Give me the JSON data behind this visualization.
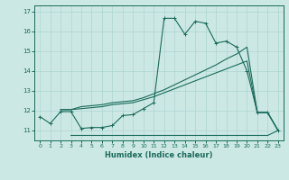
{
  "xlabel": "Humidex (Indice chaleur)",
  "bg_color": "#cce8e5",
  "line_color": "#1a6b5a",
  "grid_color": "#aed4d0",
  "xlim": [
    -0.5,
    23.5
  ],
  "ylim": [
    10.5,
    17.3
  ],
  "yticks": [
    11,
    12,
    13,
    14,
    15,
    16,
    17
  ],
  "xticks": [
    0,
    1,
    2,
    3,
    4,
    5,
    6,
    7,
    8,
    9,
    10,
    11,
    12,
    13,
    14,
    15,
    16,
    17,
    18,
    19,
    20,
    21,
    22,
    23
  ],
  "line1_x": [
    0,
    1,
    2,
    3,
    4,
    5,
    6,
    7,
    8,
    9,
    10,
    11,
    12,
    13,
    14,
    15,
    16,
    17,
    18,
    19,
    20,
    21,
    22,
    23
  ],
  "line1_y": [
    11.7,
    11.35,
    11.95,
    11.95,
    11.1,
    11.15,
    11.15,
    11.25,
    11.75,
    11.8,
    12.1,
    12.4,
    16.65,
    16.65,
    15.85,
    16.5,
    16.4,
    15.4,
    15.5,
    15.2,
    14.0,
    11.9,
    11.9,
    11.0
  ],
  "line2_x": [
    2,
    3,
    4,
    5,
    6,
    7,
    8,
    9,
    10,
    11,
    12,
    13,
    14,
    15,
    16,
    17,
    18,
    19,
    20,
    21,
    22,
    23
  ],
  "line2_y": [
    12.05,
    12.05,
    12.2,
    12.25,
    12.3,
    12.4,
    12.45,
    12.5,
    12.65,
    12.85,
    13.05,
    13.3,
    13.55,
    13.8,
    14.05,
    14.3,
    14.6,
    14.85,
    15.2,
    11.9,
    11.9,
    11.0
  ],
  "line3_x": [
    2,
    3,
    4,
    5,
    6,
    7,
    8,
    9,
    10,
    11,
    12,
    13,
    14,
    15,
    16,
    17,
    18,
    19,
    20,
    21,
    22,
    23
  ],
  "line3_y": [
    12.05,
    12.05,
    12.1,
    12.15,
    12.2,
    12.3,
    12.35,
    12.4,
    12.55,
    12.7,
    12.9,
    13.1,
    13.3,
    13.5,
    13.7,
    13.9,
    14.1,
    14.3,
    14.5,
    11.9,
    11.9,
    11.0
  ],
  "line4_x": [
    3,
    4,
    5,
    6,
    7,
    8,
    9,
    10,
    11,
    12,
    13,
    14,
    15,
    16,
    17,
    18,
    19,
    20,
    21,
    22,
    23
  ],
  "line4_y": [
    10.75,
    10.75,
    10.75,
    10.75,
    10.75,
    10.75,
    10.75,
    10.75,
    10.75,
    10.75,
    10.75,
    10.75,
    10.75,
    10.75,
    10.75,
    10.75,
    10.75,
    10.75,
    10.75,
    10.75,
    11.0
  ]
}
